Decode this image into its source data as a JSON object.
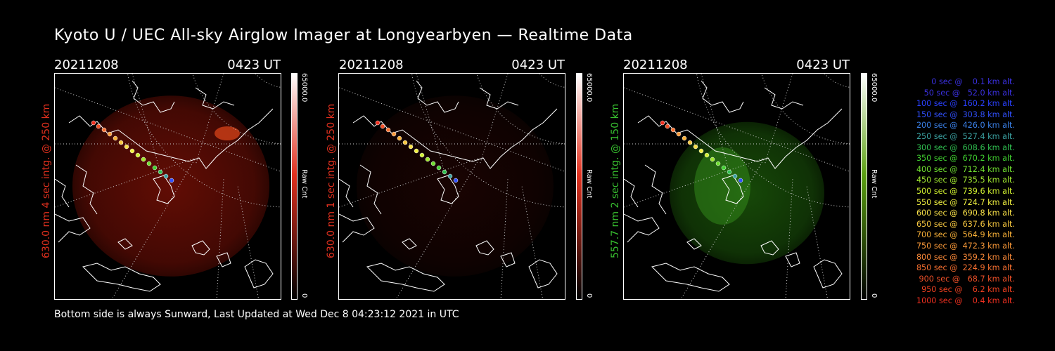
{
  "title": "Kyoto U / UEC All-sky Airglow Imager at Longyearbyen — Realtime Data",
  "footer": "Bottom side is always Sunward, Last Updated at Wed Dec  8 04:23:12 2021 in UTC",
  "panels": [
    {
      "date": "20211208",
      "time": "0423 UT",
      "ylabel": "630.0 nm  4 sec intg. @ 250 km",
      "label_color": "#e0301e",
      "cbar_max": "65000.0",
      "cbar_min": "0",
      "cbar_label": "Raw Cnt",
      "cbar_color": "#e0301e",
      "tint": "#7a1006",
      "intensity": 0.55
    },
    {
      "date": "20211208",
      "time": "0423 UT",
      "ylabel": "630.0 nm  1 sec intg. @ 250 km",
      "label_color": "#e0301e",
      "cbar_max": "65000.0",
      "cbar_min": "0",
      "cbar_label": "Raw Cnt",
      "cbar_color": "#e0301e",
      "tint": "#2a0603",
      "intensity": 0.35
    },
    {
      "date": "20211208",
      "time": "0423 UT",
      "ylabel": "557.7 nm  2 sec intg. @ 150 km",
      "label_color": "#38c030",
      "cbar_max": "65000.0",
      "cbar_min": "0",
      "cbar_label": "Raw Cnt",
      "cbar_color": "#5aa010",
      "tint": "#1c5a0a",
      "intensity": 0.55
    }
  ],
  "legend": [
    {
      "text": "0 sec @    0.1 km alt.",
      "color": "#3a30e0"
    },
    {
      "text": "50 sec @   52.0 km alt.",
      "color": "#3a30e0"
    },
    {
      "text": "100 sec @  160.2 km alt.",
      "color": "#2a40ff"
    },
    {
      "text": "150 sec @  303.8 km alt.",
      "color": "#3050ff"
    },
    {
      "text": "200 sec @  426.0 km alt.",
      "color": "#3a80e8"
    },
    {
      "text": "250 sec @  527.4 km alt.",
      "color": "#3aa0a0"
    },
    {
      "text": "300 sec @  608.6 km alt.",
      "color": "#30c050"
    },
    {
      "text": "350 sec @  670.2 km alt.",
      "color": "#40d030"
    },
    {
      "text": "400 sec @  712.4 km alt.",
      "color": "#70e030"
    },
    {
      "text": "450 sec @  735.5 km alt.",
      "color": "#a0e830"
    },
    {
      "text": "500 sec @  739.6 km alt.",
      "color": "#d0f030"
    },
    {
      "text": "550 sec @  724.7 km alt.",
      "color": "#f0f040"
    },
    {
      "text": "600 sec @  690.8 km alt.",
      "color": "#f8e048"
    },
    {
      "text": "650 sec @  637.6 km alt.",
      "color": "#f8c840"
    },
    {
      "text": "700 sec @  564.9 km alt.",
      "color": "#f8b038"
    },
    {
      "text": "750 sec @  472.3 km alt.",
      "color": "#f89838"
    },
    {
      "text": "800 sec @  359.2 km alt.",
      "color": "#f88838"
    },
    {
      "text": "850 sec @  224.9 km alt.",
      "color": "#f87030"
    },
    {
      "text": "900 sec @   68.7 km alt.",
      "color": "#f05028"
    },
    {
      "text": "950 sec @    6.2 km alt.",
      "color": "#f04020"
    },
    {
      "text": "1000 sec @    0.4 km alt.",
      "color": "#f03020"
    }
  ]
}
